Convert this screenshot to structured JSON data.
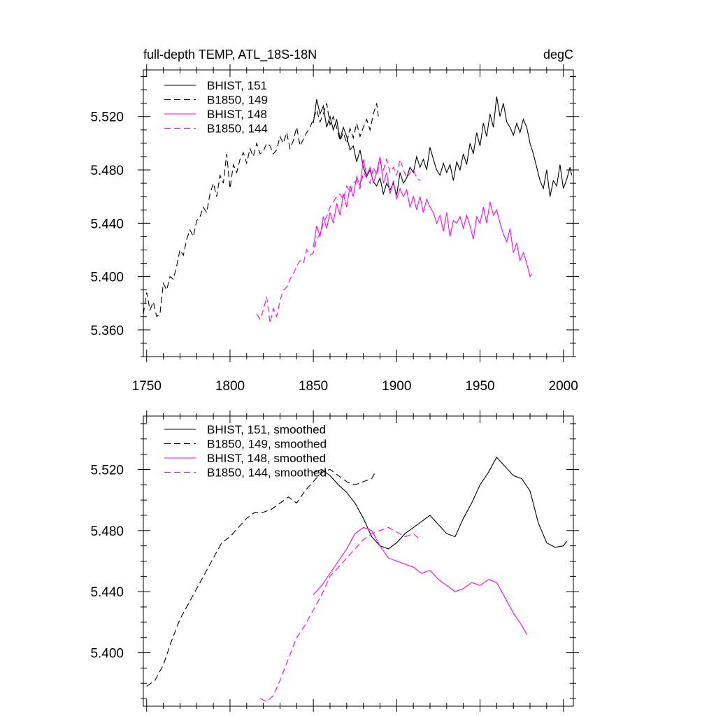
{
  "chart_data": [
    {
      "type": "line",
      "title": "full-depth TEMP, ATL_18S-18N",
      "units": "degC",
      "xlabel": "",
      "ylabel": "",
      "xlim": [
        1748,
        2006
      ],
      "ylim": [
        5.34,
        5.555
      ],
      "xticks": [
        1750,
        1800,
        1850,
        1900,
        1950,
        2000
      ],
      "xticklabels": [
        "1750",
        "1800",
        "1850",
        "1900",
        "1950",
        "2000"
      ],
      "yticks": [
        5.36,
        5.4,
        5.44,
        5.48,
        5.52
      ],
      "yticklabels": [
        "5.360",
        "5.400",
        "5.440",
        "5.480",
        "5.520"
      ],
      "series": [
        {
          "name": "BHIST, 151",
          "color": "#000000",
          "dash": "solid",
          "x": [
            1850,
            1852,
            1854,
            1856,
            1858,
            1860,
            1862,
            1864,
            1866,
            1868,
            1870,
            1872,
            1874,
            1876,
            1878,
            1880,
            1882,
            1884,
            1886,
            1888,
            1890,
            1892,
            1894,
            1896,
            1898,
            1900,
            1902,
            1904,
            1906,
            1908,
            1910,
            1912,
            1914,
            1916,
            1918,
            1920,
            1922,
            1924,
            1926,
            1928,
            1930,
            1932,
            1934,
            1936,
            1938,
            1940,
            1942,
            1944,
            1946,
            1948,
            1950,
            1952,
            1954,
            1956,
            1958,
            1960,
            1962,
            1964,
            1966,
            1968,
            1970,
            1972,
            1974,
            1976,
            1978,
            1980,
            1982,
            1984,
            1986,
            1988,
            1990,
            1992,
            1994,
            1996,
            1998,
            2000,
            2002,
            2004,
            2005
          ],
          "y": [
            5.515,
            5.533,
            5.522,
            5.528,
            5.512,
            5.52,
            5.51,
            5.518,
            5.503,
            5.512,
            5.505,
            5.495,
            5.498,
            5.486,
            5.495,
            5.482,
            5.475,
            5.48,
            5.471,
            5.468,
            5.474,
            5.462,
            5.47,
            5.465,
            5.47,
            5.461,
            5.478,
            5.47,
            5.474,
            5.482,
            5.478,
            5.49,
            5.482,
            5.488,
            5.48,
            5.497,
            5.488,
            5.48,
            5.476,
            5.485,
            5.478,
            5.484,
            5.472,
            5.486,
            5.48,
            5.492,
            5.484,
            5.5,
            5.492,
            5.508,
            5.498,
            5.515,
            5.505,
            5.522,
            5.512,
            5.535,
            5.52,
            5.53,
            5.516,
            5.512,
            5.506,
            5.515,
            5.508,
            5.518,
            5.512,
            5.5,
            5.492,
            5.482,
            5.472,
            5.466,
            5.48,
            5.46,
            5.472,
            5.468,
            5.484,
            5.466,
            5.473,
            5.482,
            5.476
          ]
        },
        {
          "name": "B1850, 149",
          "color": "#000000",
          "dash": "dashed",
          "x": [
            1748,
            1750,
            1752,
            1754,
            1756,
            1758,
            1760,
            1762,
            1764,
            1766,
            1768,
            1770,
            1772,
            1774,
            1776,
            1778,
            1780,
            1782,
            1784,
            1786,
            1788,
            1790,
            1792,
            1794,
            1796,
            1798,
            1800,
            1802,
            1804,
            1806,
            1808,
            1810,
            1812,
            1814,
            1816,
            1818,
            1820,
            1822,
            1824,
            1826,
            1828,
            1830,
            1832,
            1834,
            1836,
            1838,
            1840,
            1842,
            1844,
            1846,
            1848,
            1850,
            1852,
            1854,
            1856,
            1858,
            1860,
            1862,
            1864,
            1866,
            1868,
            1870,
            1872,
            1874,
            1876,
            1878,
            1880,
            1882,
            1884,
            1886,
            1888,
            1889
          ],
          "y": [
            5.372,
            5.388,
            5.375,
            5.381,
            5.37,
            5.372,
            5.395,
            5.39,
            5.4,
            5.398,
            5.408,
            5.42,
            5.416,
            5.428,
            5.435,
            5.43,
            5.442,
            5.445,
            5.452,
            5.448,
            5.462,
            5.47,
            5.46,
            5.476,
            5.47,
            5.492,
            5.466,
            5.484,
            5.478,
            5.488,
            5.493,
            5.485,
            5.496,
            5.49,
            5.5,
            5.492,
            5.494,
            5.5,
            5.498,
            5.492,
            5.495,
            5.505,
            5.5,
            5.508,
            5.496,
            5.502,
            5.512,
            5.498,
            5.503,
            5.508,
            5.512,
            5.518,
            5.525,
            5.516,
            5.522,
            5.53,
            5.514,
            5.52,
            5.512,
            5.502,
            5.508,
            5.5,
            5.511,
            5.504,
            5.515,
            5.505,
            5.512,
            5.518,
            5.51,
            5.522,
            5.53,
            5.52
          ]
        },
        {
          "name": "BHIST, 148",
          "color": "#ff00ff",
          "dash": "solid",
          "x": [
            1850,
            1852,
            1854,
            1856,
            1858,
            1860,
            1862,
            1864,
            1866,
            1868,
            1870,
            1872,
            1874,
            1876,
            1878,
            1880,
            1882,
            1884,
            1886,
            1888,
            1890,
            1892,
            1894,
            1896,
            1898,
            1900,
            1902,
            1904,
            1906,
            1908,
            1910,
            1912,
            1914,
            1916,
            1918,
            1920,
            1922,
            1924,
            1926,
            1928,
            1930,
            1932,
            1934,
            1936,
            1938,
            1940,
            1942,
            1944,
            1946,
            1948,
            1950,
            1952,
            1954,
            1956,
            1958,
            1960,
            1962,
            1964,
            1966,
            1968,
            1970,
            1972,
            1974,
            1976,
            1978,
            1980,
            1981
          ],
          "y": [
            5.422,
            5.438,
            5.43,
            5.445,
            5.436,
            5.448,
            5.44,
            5.455,
            5.446,
            5.462,
            5.452,
            5.468,
            5.46,
            5.475,
            5.468,
            5.488,
            5.476,
            5.482,
            5.47,
            5.478,
            5.49,
            5.47,
            5.478,
            5.462,
            5.472,
            5.458,
            5.466,
            5.46,
            5.465,
            5.452,
            5.46,
            5.45,
            5.46,
            5.448,
            5.458,
            5.452,
            5.448,
            5.44,
            5.446,
            5.434,
            5.448,
            5.43,
            5.442,
            5.44,
            5.445,
            5.436,
            5.446,
            5.438,
            5.428,
            5.445,
            5.44,
            5.452,
            5.44,
            5.456,
            5.446,
            5.45,
            5.44,
            5.432,
            5.426,
            5.436,
            5.418,
            5.425,
            5.412,
            5.418,
            5.41,
            5.4,
            5.402
          ]
        },
        {
          "name": "B1850, 144",
          "color": "#ff00ff",
          "dash": "dashed",
          "x": [
            1816,
            1818,
            1820,
            1822,
            1824,
            1826,
            1828,
            1830,
            1832,
            1834,
            1836,
            1838,
            1840,
            1842,
            1844,
            1846,
            1848,
            1850,
            1852,
            1854,
            1856,
            1858,
            1860,
            1862,
            1864,
            1866,
            1868,
            1870,
            1872,
            1874,
            1876,
            1878,
            1880,
            1882,
            1884,
            1886,
            1888,
            1890,
            1892,
            1894,
            1896,
            1898,
            1900,
            1902,
            1904,
            1906,
            1908,
            1910,
            1912,
            1914
          ],
          "y": [
            5.372,
            5.368,
            5.375,
            5.385,
            5.365,
            5.376,
            5.37,
            5.382,
            5.39,
            5.392,
            5.398,
            5.402,
            5.408,
            5.412,
            5.41,
            5.42,
            5.416,
            5.418,
            5.428,
            5.432,
            5.44,
            5.445,
            5.452,
            5.456,
            5.46,
            5.462,
            5.458,
            5.468,
            5.463,
            5.47,
            5.472,
            5.466,
            5.478,
            5.474,
            5.47,
            5.482,
            5.476,
            5.486,
            5.48,
            5.488,
            5.478,
            5.482,
            5.476,
            5.488,
            5.48,
            5.474,
            5.478,
            5.48,
            5.474,
            5.472
          ]
        }
      ]
    },
    {
      "type": "line",
      "title": "",
      "xlabel": "",
      "ylabel": "",
      "xlim": [
        1748,
        2006
      ],
      "ylim": [
        5.365,
        5.555
      ],
      "xticks": [
        1750,
        1800,
        1850,
        1900,
        1950,
        2000
      ],
      "xticklabels": [],
      "yticks": [
        5.4,
        5.44,
        5.48,
        5.52
      ],
      "yticklabels": [
        "5.400",
        "5.440",
        "5.480",
        "5.520"
      ],
      "series": [
        {
          "name": "BHIST, 151, smoothed",
          "color": "#000000",
          "dash": "solid",
          "x": [
            1850,
            1855,
            1860,
            1865,
            1870,
            1875,
            1880,
            1885,
            1890,
            1895,
            1900,
            1905,
            1910,
            1915,
            1920,
            1925,
            1930,
            1935,
            1940,
            1945,
            1950,
            1955,
            1960,
            1965,
            1970,
            1975,
            1980,
            1985,
            1990,
            1995,
            2000,
            2002
          ],
          "y": [
            5.518,
            5.52,
            5.516,
            5.51,
            5.505,
            5.498,
            5.488,
            5.476,
            5.47,
            5.468,
            5.472,
            5.478,
            5.482,
            5.486,
            5.49,
            5.484,
            5.478,
            5.476,
            5.488,
            5.498,
            5.51,
            5.518,
            5.528,
            5.522,
            5.516,
            5.514,
            5.506,
            5.485,
            5.472,
            5.469,
            5.47,
            5.473
          ]
        },
        {
          "name": "B1850, 149, smoothed",
          "color": "#000000",
          "dash": "dashed",
          "x": [
            1750,
            1755,
            1760,
            1765,
            1770,
            1775,
            1780,
            1785,
            1790,
            1795,
            1800,
            1805,
            1810,
            1815,
            1820,
            1825,
            1830,
            1835,
            1840,
            1845,
            1850,
            1855,
            1860,
            1865,
            1870,
            1875,
            1880,
            1885,
            1887
          ],
          "y": [
            5.378,
            5.382,
            5.392,
            5.408,
            5.422,
            5.432,
            5.442,
            5.452,
            5.462,
            5.472,
            5.476,
            5.482,
            5.488,
            5.492,
            5.492,
            5.494,
            5.498,
            5.502,
            5.498,
            5.506,
            5.512,
            5.518,
            5.52,
            5.516,
            5.512,
            5.51,
            5.512,
            5.514,
            5.518
          ]
        },
        {
          "name": "BHIST, 148, smoothed",
          "color": "#ff00ff",
          "dash": "solid",
          "x": [
            1850,
            1855,
            1860,
            1865,
            1870,
            1875,
            1880,
            1885,
            1890,
            1895,
            1900,
            1905,
            1910,
            1915,
            1920,
            1925,
            1930,
            1935,
            1940,
            1945,
            1950,
            1955,
            1960,
            1965,
            1970,
            1975,
            1978
          ],
          "y": [
            5.438,
            5.444,
            5.452,
            5.46,
            5.468,
            5.478,
            5.482,
            5.48,
            5.47,
            5.462,
            5.46,
            5.458,
            5.456,
            5.452,
            5.454,
            5.448,
            5.444,
            5.44,
            5.442,
            5.446,
            5.444,
            5.448,
            5.446,
            5.436,
            5.426,
            5.418,
            5.412
          ]
        },
        {
          "name": "B1850, 144, smoothed",
          "color": "#ff00ff",
          "dash": "dashed",
          "x": [
            1818,
            1822,
            1826,
            1830,
            1835,
            1840,
            1845,
            1850,
            1855,
            1860,
            1865,
            1870,
            1875,
            1880,
            1885,
            1890,
            1895,
            1900,
            1905,
            1910,
            1914
          ],
          "y": [
            5.37,
            5.368,
            5.372,
            5.382,
            5.396,
            5.41,
            5.418,
            5.428,
            5.438,
            5.45,
            5.456,
            5.462,
            5.468,
            5.474,
            5.478,
            5.48,
            5.482,
            5.479,
            5.476,
            5.478,
            5.474
          ]
        }
      ]
    }
  ],
  "axis_labels": {
    "panel1": {
      "title": "full-depth TEMP, ATL_18S-18N",
      "units": "degC"
    }
  }
}
